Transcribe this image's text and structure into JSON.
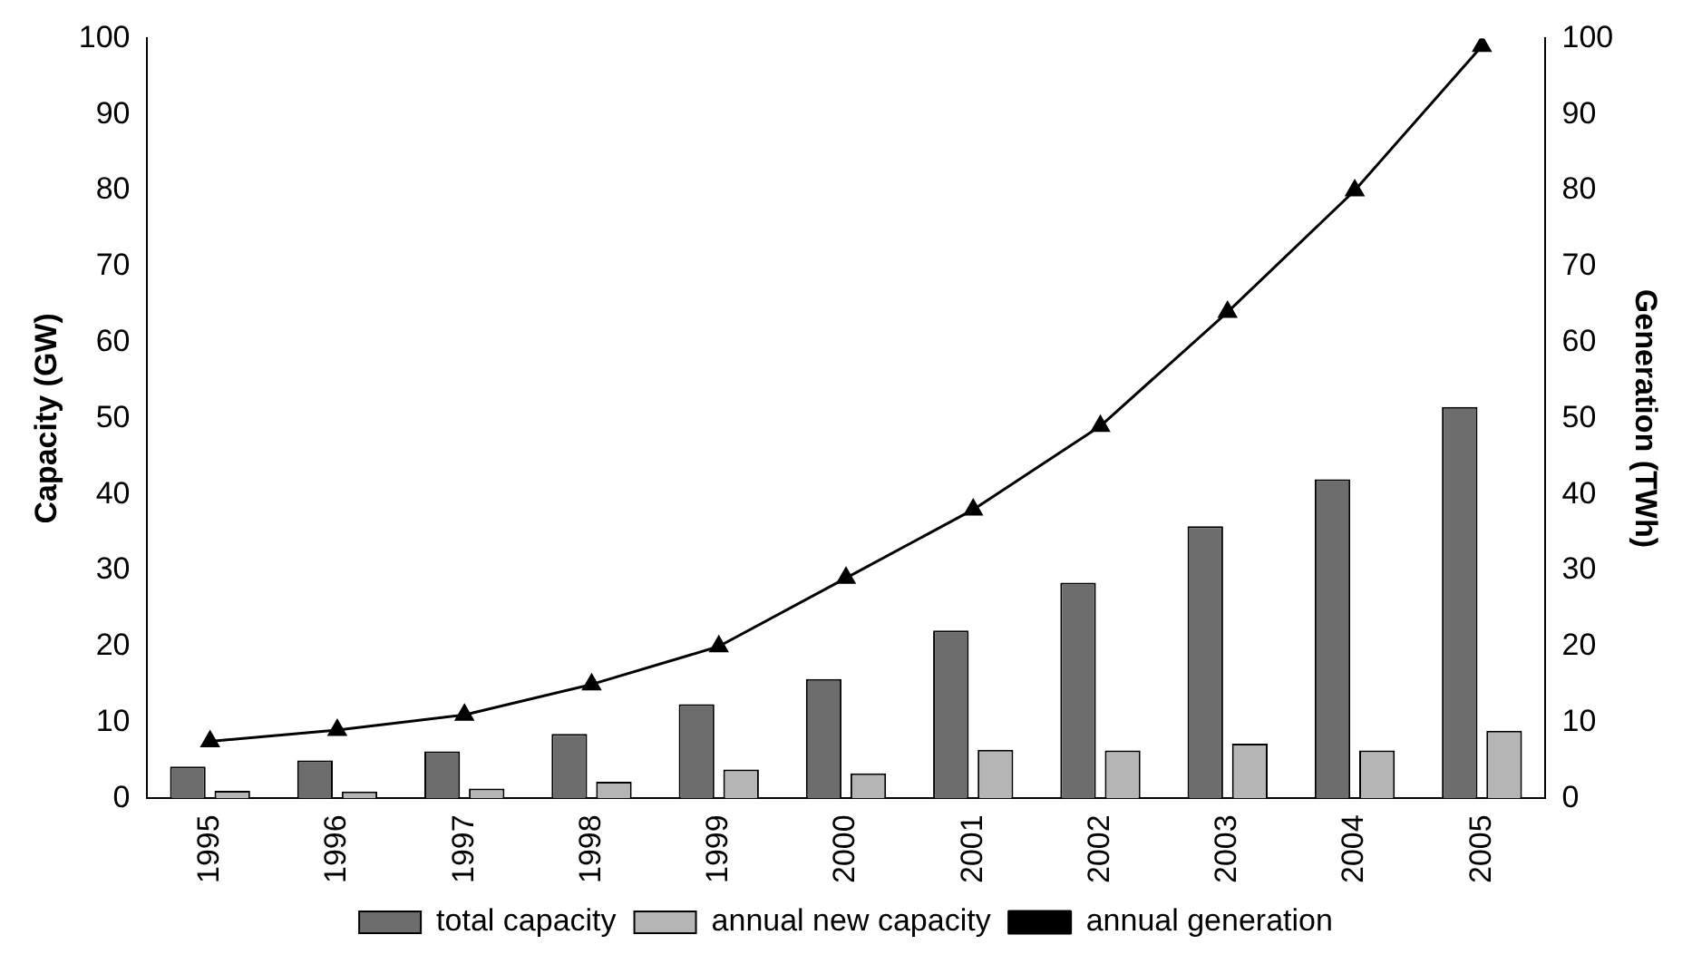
{
  "chart_data": {
    "type": "bar",
    "categories": [
      "1995",
      "1996",
      "1997",
      "1998",
      "1999",
      "2000",
      "2001",
      "2002",
      "2003",
      "2004",
      "2005"
    ],
    "series": [
      {
        "name": "total capacity",
        "color": "#6d6d6d",
        "values": [
          4.2,
          5.0,
          6.2,
          8.5,
          12.4,
          15.7,
          22.1,
          28.4,
          35.8,
          42.0,
          51.5
        ]
      },
      {
        "name": "annual new capacity",
        "color": "#b5b5b5",
        "values": [
          1.0,
          0.9,
          1.3,
          2.2,
          3.8,
          3.3,
          6.4,
          6.3,
          7.2,
          6.3,
          8.9
        ]
      },
      {
        "name": "annual generation",
        "type": "line",
        "axis": "y2",
        "color": "#000000",
        "marker": "triangle",
        "values": [
          7.5,
          9,
          11,
          15,
          20,
          29,
          38,
          49,
          64,
          80,
          99
        ]
      }
    ],
    "ylabel": "Capacity (GW)",
    "y2label": "Generation (TWh)",
    "ylim": [
      0,
      100
    ],
    "yticks": [
      0,
      10,
      20,
      30,
      40,
      50,
      60,
      70,
      80,
      90,
      100
    ],
    "y2lim": [
      0,
      100
    ],
    "y2ticks": [
      0,
      10,
      20,
      30,
      40,
      50,
      60,
      70,
      80,
      90,
      100
    ],
    "grid": false,
    "legend": "bottom"
  }
}
